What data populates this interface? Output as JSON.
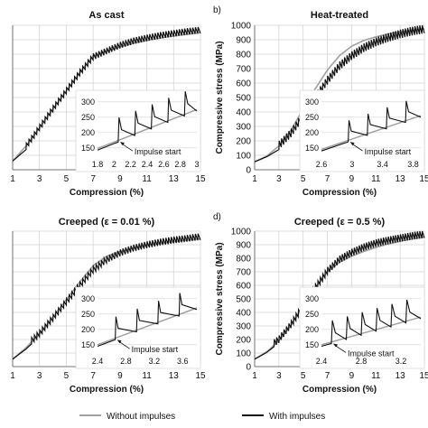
{
  "chart_data": [
    {
      "id": "a",
      "type": "line",
      "panel_letter": "",
      "title": "As cast",
      "xlabel": "Compression (%)",
      "ylabel": "",
      "xticks": [
        "1",
        "3",
        "5",
        "7",
        "9",
        "11",
        "13",
        "15"
      ],
      "yticks": [
        "",
        "",
        "",
        "",
        "",
        "",
        "",
        "",
        "",
        "",
        ""
      ],
      "xlim": [
        1,
        15
      ],
      "ylim": [
        0,
        1000
      ],
      "grid": true,
      "series": [
        {
          "name": "",
          "color": "#a0a0a0",
          "style": "smooth",
          "x": [
            1,
            2,
            3,
            4,
            5,
            6,
            7,
            8,
            9,
            10,
            11,
            12,
            13,
            14,
            15
          ],
          "y": [
            60,
            165,
            290,
            420,
            545,
            670,
            785,
            820,
            850,
            875,
            895,
            912,
            925,
            937,
            948
          ]
        },
        {
          "name": "",
          "color": "#111111",
          "style": "impulses",
          "spike": 45,
          "start": 2.0,
          "x": [
            1,
            2,
            3,
            4,
            5,
            6,
            7,
            8,
            9,
            10,
            11,
            12,
            13,
            14,
            15
          ],
          "y": [
            60,
            140,
            270,
            400,
            525,
            650,
            760,
            800,
            840,
            870,
            890,
            908,
            922,
            935,
            945
          ]
        }
      ],
      "inset": {
        "xticks": [
          "1.8",
          "2",
          "2.2",
          "2.4",
          "2.6",
          "2.8",
          "3"
        ],
        "yticks": [
          "150",
          "200",
          "250",
          "300"
        ],
        "xlim": [
          1.8,
          3.0
        ],
        "ylim": [
          120,
          320
        ],
        "annotation": "Impulse start",
        "base": {
          "x": [
            1.8,
            3.0
          ],
          "y": [
            148,
            275
          ]
        },
        "spikes": [
          2.05,
          2.25,
          2.45,
          2.65,
          2.85
        ],
        "spike_height": 80,
        "drop": 40
      }
    },
    {
      "id": "b",
      "type": "line",
      "panel_letter": "b)",
      "title": "Heat-treated",
      "xlabel": "Compression (%)",
      "ylabel": "Compressive stress (MPa)",
      "xticks": [
        "1",
        "3",
        "5",
        "7",
        "9",
        "11",
        "13",
        "15"
      ],
      "yticks": [
        "0",
        "100",
        "200",
        "300",
        "400",
        "500",
        "600",
        "700",
        "800",
        "900",
        "1000"
      ],
      "xlim": [
        1,
        15
      ],
      "ylim": [
        0,
        1000
      ],
      "grid": true,
      "series": [
        {
          "name": "",
          "color": "#a0a0a0",
          "style": "smooth",
          "x": [
            1,
            2,
            3,
            4,
            5,
            6,
            7,
            8,
            9,
            10,
            11,
            12,
            13,
            14,
            15
          ],
          "y": [
            55,
            95,
            165,
            275,
            420,
            560,
            690,
            790,
            855,
            895,
            920,
            940,
            955,
            965,
            975
          ]
        },
        {
          "name": "",
          "color": "#111111",
          "style": "impulses",
          "spike": 60,
          "start": 3.0,
          "x": [
            1,
            2,
            3,
            4,
            5,
            6,
            7,
            8,
            9,
            10,
            11,
            12,
            13,
            14,
            15
          ],
          "y": [
            55,
            90,
            140,
            225,
            345,
            470,
            590,
            690,
            760,
            815,
            855,
            885,
            910,
            930,
            945
          ]
        }
      ],
      "inset": {
        "xticks": [
          "2.6",
          "3",
          "3.4",
          "3.8"
        ],
        "yticks": [
          "150",
          "200",
          "250",
          "300"
        ],
        "xlim": [
          2.6,
          3.9
        ],
        "ylim": [
          120,
          320
        ],
        "annotation": "Impulse start",
        "base": {
          "x": [
            2.6,
            3.9
          ],
          "y": [
            145,
            255
          ]
        },
        "spikes": [
          2.95,
          3.2,
          3.45,
          3.7
        ],
        "spike_height": 70,
        "drop": 35
      }
    },
    {
      "id": "c",
      "type": "line",
      "panel_letter": "",
      "title": "Creeped (ε = 0.01 %)",
      "xlabel": "Compression (%)",
      "ylabel": "",
      "xticks": [
        "1",
        "3",
        "5",
        "7",
        "9",
        "11",
        "13",
        "15"
      ],
      "yticks": [
        "",
        "",
        "",
        "",
        "",
        "",
        "",
        "",
        "",
        "",
        ""
      ],
      "xlim": [
        1,
        15
      ],
      "ylim": [
        0,
        1000
      ],
      "grid": true,
      "series": [
        {
          "name": "",
          "color": "#a0a0a0",
          "style": "smooth",
          "x": [
            1,
            2,
            3,
            4,
            5,
            6,
            7,
            8,
            9,
            10,
            11,
            12,
            13,
            14,
            15
          ],
          "y": [
            55,
            140,
            240,
            365,
            495,
            625,
            745,
            815,
            850,
            875,
            895,
            910,
            922,
            933,
            942
          ]
        },
        {
          "name": "",
          "color": "#111111",
          "style": "impulses",
          "spike": 50,
          "start": 2.4,
          "x": [
            1,
            2,
            3,
            4,
            5,
            6,
            7,
            8,
            9,
            10,
            11,
            12,
            13,
            14,
            15
          ],
          "y": [
            55,
            130,
            220,
            335,
            455,
            575,
            690,
            765,
            815,
            850,
            875,
            895,
            910,
            922,
            935
          ]
        }
      ],
      "inset": {
        "xticks": [
          "2.4",
          "2.8",
          "3.2",
          "3.6"
        ],
        "yticks": [
          "150",
          "200",
          "250",
          "300"
        ],
        "xlim": [
          2.4,
          3.8
        ],
        "ylim": [
          120,
          320
        ],
        "annotation": "Impulse start",
        "base": {
          "x": [
            2.4,
            3.8
          ],
          "y": [
            150,
            270
          ]
        },
        "spikes": [
          2.65,
          2.95,
          3.25,
          3.55
        ],
        "spike_height": 75,
        "drop": 38
      }
    },
    {
      "id": "d",
      "type": "line",
      "panel_letter": "d)",
      "title": "Creeped (ε = 0.5 %)",
      "xlabel": "Compression (%)",
      "ylabel": "Compressive stress (MPa)",
      "xticks": [
        "1",
        "3",
        "5",
        "7",
        "9",
        "11",
        "13",
        "15"
      ],
      "yticks": [
        "0",
        "100",
        "200",
        "300",
        "400",
        "500",
        "600",
        "700",
        "800",
        "900",
        "1000"
      ],
      "xlim": [
        1,
        15
      ],
      "ylim": [
        0,
        1000
      ],
      "grid": true,
      "series": [
        {
          "name": "",
          "color": "#a0a0a0",
          "style": "smooth",
          "x": [
            1,
            2,
            3,
            4,
            5,
            6,
            7,
            8,
            9,
            10,
            11,
            12,
            13,
            14,
            15
          ],
          "y": [
            55,
            110,
            190,
            305,
            445,
            580,
            700,
            770,
            815,
            850,
            880,
            905,
            925,
            942,
            955
          ]
        },
        {
          "name": "",
          "color": "#111111",
          "style": "impulses",
          "spike": 55,
          "start": 2.6,
          "x": [
            1,
            2,
            3,
            4,
            5,
            6,
            7,
            8,
            9,
            10,
            11,
            12,
            13,
            14,
            15
          ],
          "y": [
            55,
            105,
            175,
            285,
            420,
            555,
            680,
            765,
            815,
            855,
            885,
            905,
            922,
            938,
            950
          ]
        }
      ],
      "inset": {
        "xticks": [
          "2.4",
          "2.8",
          "3.2"
        ],
        "yticks": [
          "150",
          "200",
          "250",
          "300"
        ],
        "xlim": [
          2.4,
          3.4
        ],
        "ylim": [
          120,
          320
        ],
        "annotation": "Impulse start",
        "base": {
          "x": [
            2.4,
            3.4
          ],
          "y": [
            150,
            240
          ]
        },
        "spikes": [
          2.5,
          2.65,
          2.8,
          2.95,
          3.1,
          3.25
        ],
        "spike_height": 75,
        "drop": 40
      }
    }
  ],
  "legend": {
    "placement": "bottom",
    "items": [
      {
        "label": "Without impulses",
        "color": "#a0a0a0"
      },
      {
        "label": "With impulses",
        "color": "#111111"
      }
    ]
  }
}
